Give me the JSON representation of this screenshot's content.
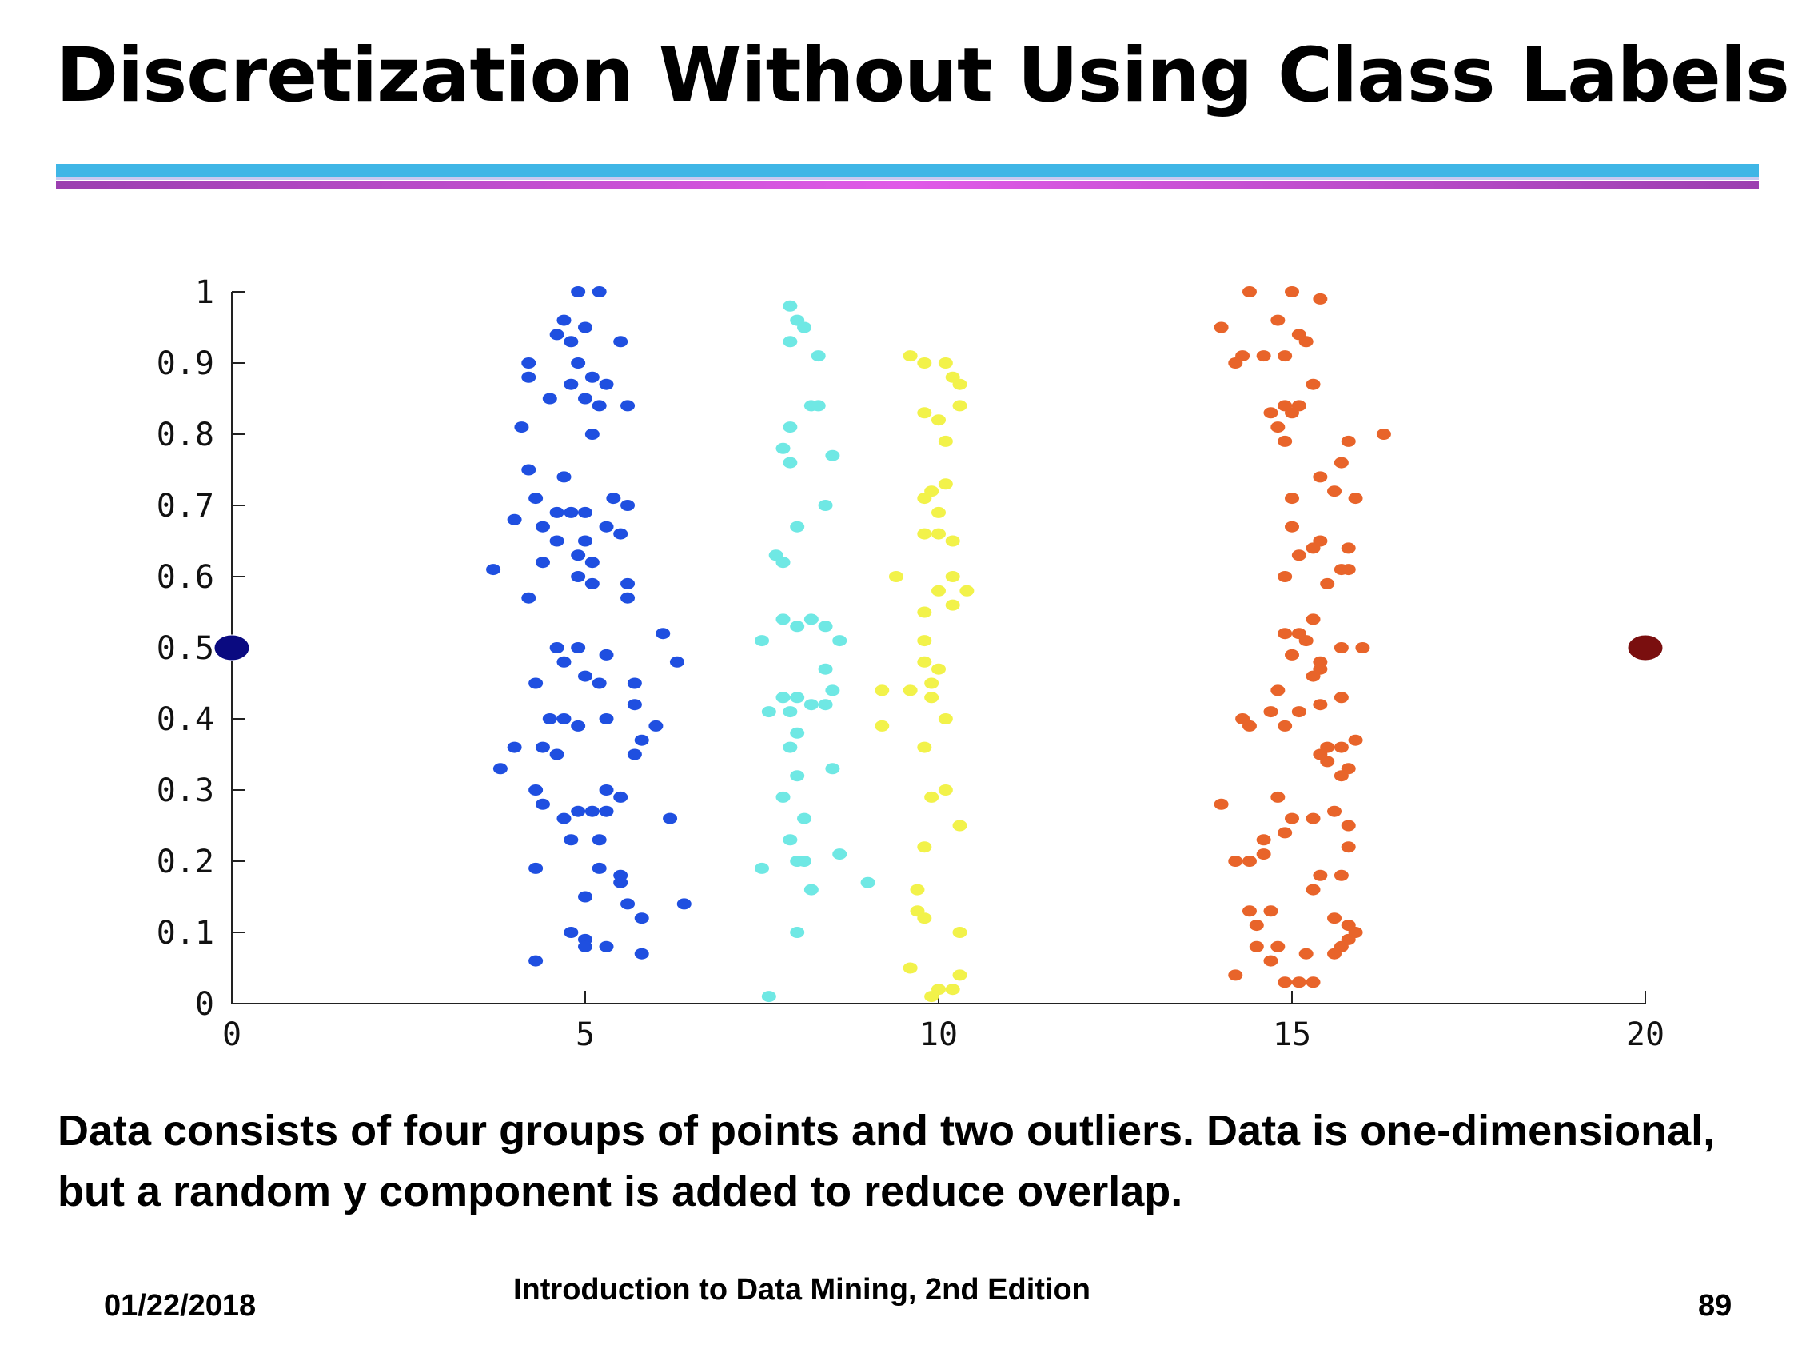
{
  "title": "Discretization Without Using Class Labels",
  "caption": "Data consists of four groups of points and two outliers. Data is one-dimensional, but a random y component is added to reduce overlap.",
  "footer": {
    "date": "01/22/2018",
    "book": "Introduction to Data Mining, 2nd Edition",
    "page": "89"
  },
  "colors": {
    "rule_top": "#3fb6e6",
    "rule_bottom": "#d24fe0",
    "group_1": "#1f4fe0",
    "group_2": "#6fe8e4",
    "group_3": "#f2f24a",
    "group_4": "#e8642a",
    "outlier_left": "#0a0a80",
    "outlier_right": "#7a0f0f"
  },
  "chart_data": {
    "type": "scatter",
    "title": "",
    "xlabel": "",
    "ylabel": "",
    "xlim": [
      0,
      20
    ],
    "ylim": [
      0,
      1
    ],
    "x_ticks": [
      "0",
      "5",
      "10",
      "15",
      "20"
    ],
    "y_ticks": [
      "0",
      "0.1",
      "0.2",
      "0.3",
      "0.4",
      "0.5",
      "0.6",
      "0.7",
      "0.8",
      "0.9",
      "1"
    ],
    "grid": false,
    "legend": "none",
    "series": [
      {
        "color": "#1f4fe0",
        "points": [
          [
            4.9,
            1.0
          ],
          [
            5.2,
            1.0
          ],
          [
            4.7,
            0.96
          ],
          [
            5.0,
            0.95
          ],
          [
            4.6,
            0.94
          ],
          [
            4.8,
            0.93
          ],
          [
            5.5,
            0.93
          ],
          [
            4.2,
            0.9
          ],
          [
            4.2,
            0.88
          ],
          [
            4.9,
            0.9
          ],
          [
            5.1,
            0.88
          ],
          [
            4.8,
            0.87
          ],
          [
            5.3,
            0.87
          ],
          [
            4.5,
            0.85
          ],
          [
            5.0,
            0.85
          ],
          [
            5.2,
            0.84
          ],
          [
            5.6,
            0.84
          ],
          [
            4.1,
            0.81
          ],
          [
            5.1,
            0.8
          ],
          [
            4.2,
            0.75
          ],
          [
            4.7,
            0.74
          ],
          [
            4.3,
            0.71
          ],
          [
            5.4,
            0.71
          ],
          [
            5.6,
            0.7
          ],
          [
            4.0,
            0.68
          ],
          [
            4.6,
            0.69
          ],
          [
            4.8,
            0.69
          ],
          [
            5.0,
            0.69
          ],
          [
            4.4,
            0.67
          ],
          [
            5.3,
            0.67
          ],
          [
            5.5,
            0.66
          ],
          [
            4.6,
            0.65
          ],
          [
            5.0,
            0.65
          ],
          [
            4.4,
            0.62
          ],
          [
            4.9,
            0.63
          ],
          [
            5.1,
            0.62
          ],
          [
            3.7,
            0.61
          ],
          [
            4.9,
            0.6
          ],
          [
            5.1,
            0.59
          ],
          [
            5.6,
            0.59
          ],
          [
            4.2,
            0.57
          ],
          [
            5.6,
            0.57
          ],
          [
            6.1,
            0.52
          ],
          [
            4.6,
            0.5
          ],
          [
            4.9,
            0.5
          ],
          [
            5.3,
            0.49
          ],
          [
            4.7,
            0.48
          ],
          [
            6.3,
            0.48
          ],
          [
            5.0,
            0.46
          ],
          [
            4.3,
            0.45
          ],
          [
            5.7,
            0.45
          ],
          [
            5.2,
            0.45
          ],
          [
            5.7,
            0.42
          ],
          [
            4.5,
            0.4
          ],
          [
            4.7,
            0.4
          ],
          [
            4.9,
            0.39
          ],
          [
            5.3,
            0.4
          ],
          [
            6.0,
            0.39
          ],
          [
            4.0,
            0.36
          ],
          [
            4.4,
            0.36
          ],
          [
            4.6,
            0.35
          ],
          [
            5.8,
            0.37
          ],
          [
            5.7,
            0.35
          ],
          [
            3.8,
            0.33
          ],
          [
            4.3,
            0.3
          ],
          [
            5.3,
            0.3
          ],
          [
            5.5,
            0.29
          ],
          [
            4.4,
            0.28
          ],
          [
            4.9,
            0.27
          ],
          [
            5.1,
            0.27
          ],
          [
            4.7,
            0.26
          ],
          [
            5.3,
            0.27
          ],
          [
            6.2,
            0.26
          ],
          [
            4.8,
            0.23
          ],
          [
            5.2,
            0.23
          ],
          [
            4.3,
            0.19
          ],
          [
            5.2,
            0.19
          ],
          [
            5.5,
            0.18
          ],
          [
            5.5,
            0.17
          ],
          [
            5.0,
            0.15
          ],
          [
            5.6,
            0.14
          ],
          [
            6.4,
            0.14
          ],
          [
            5.8,
            0.12
          ],
          [
            4.8,
            0.1
          ],
          [
            5.0,
            0.09
          ],
          [
            5.3,
            0.08
          ],
          [
            5.0,
            0.08
          ],
          [
            5.8,
            0.07
          ],
          [
            4.3,
            0.06
          ]
        ]
      },
      {
        "color": "#6fe8e4",
        "points": [
          [
            7.9,
            0.98
          ],
          [
            8.0,
            0.96
          ],
          [
            8.1,
            0.95
          ],
          [
            7.9,
            0.93
          ],
          [
            8.3,
            0.91
          ],
          [
            8.2,
            0.84
          ],
          [
            8.3,
            0.84
          ],
          [
            7.9,
            0.81
          ],
          [
            7.8,
            0.78
          ],
          [
            7.9,
            0.76
          ],
          [
            8.5,
            0.77
          ],
          [
            8.4,
            0.7
          ],
          [
            8.0,
            0.67
          ],
          [
            7.7,
            0.63
          ],
          [
            7.8,
            0.62
          ],
          [
            7.8,
            0.54
          ],
          [
            8.0,
            0.53
          ],
          [
            8.2,
            0.54
          ],
          [
            8.4,
            0.53
          ],
          [
            8.6,
            0.51
          ],
          [
            7.5,
            0.51
          ],
          [
            8.4,
            0.47
          ],
          [
            8.5,
            0.44
          ],
          [
            7.8,
            0.43
          ],
          [
            8.0,
            0.43
          ],
          [
            8.2,
            0.42
          ],
          [
            8.4,
            0.42
          ],
          [
            7.6,
            0.41
          ],
          [
            7.9,
            0.41
          ],
          [
            8.0,
            0.38
          ],
          [
            7.9,
            0.36
          ],
          [
            8.5,
            0.33
          ],
          [
            8.0,
            0.32
          ],
          [
            7.8,
            0.29
          ],
          [
            8.1,
            0.26
          ],
          [
            7.9,
            0.23
          ],
          [
            7.5,
            0.19
          ],
          [
            8.0,
            0.2
          ],
          [
            8.1,
            0.2
          ],
          [
            8.6,
            0.21
          ],
          [
            9.0,
            0.17
          ],
          [
            8.2,
            0.16
          ],
          [
            8.0,
            0.1
          ],
          [
            7.6,
            0.01
          ]
        ]
      },
      {
        "color": "#f2f24a",
        "points": [
          [
            9.6,
            0.91
          ],
          [
            9.8,
            0.9
          ],
          [
            10.1,
            0.9
          ],
          [
            10.2,
            0.88
          ],
          [
            10.3,
            0.87
          ],
          [
            10.3,
            0.84
          ],
          [
            9.8,
            0.83
          ],
          [
            10.0,
            0.82
          ],
          [
            10.1,
            0.79
          ],
          [
            10.1,
            0.73
          ],
          [
            9.9,
            0.72
          ],
          [
            9.8,
            0.71
          ],
          [
            10.0,
            0.69
          ],
          [
            9.8,
            0.66
          ],
          [
            10.0,
            0.66
          ],
          [
            10.2,
            0.65
          ],
          [
            9.4,
            0.6
          ],
          [
            10.2,
            0.6
          ],
          [
            10.0,
            0.58
          ],
          [
            10.4,
            0.58
          ],
          [
            10.2,
            0.56
          ],
          [
            9.8,
            0.55
          ],
          [
            9.8,
            0.51
          ],
          [
            9.8,
            0.48
          ],
          [
            10.0,
            0.47
          ],
          [
            9.6,
            0.44
          ],
          [
            9.9,
            0.45
          ],
          [
            9.9,
            0.43
          ],
          [
            9.2,
            0.44
          ],
          [
            10.1,
            0.4
          ],
          [
            9.2,
            0.39
          ],
          [
            9.8,
            0.36
          ],
          [
            10.1,
            0.3
          ],
          [
            9.9,
            0.29
          ],
          [
            10.3,
            0.25
          ],
          [
            9.8,
            0.22
          ],
          [
            9.7,
            0.16
          ],
          [
            9.7,
            0.13
          ],
          [
            9.8,
            0.12
          ],
          [
            10.3,
            0.1
          ],
          [
            9.6,
            0.05
          ],
          [
            10.3,
            0.04
          ],
          [
            10.0,
            0.02
          ],
          [
            9.9,
            0.01
          ],
          [
            10.2,
            0.02
          ]
        ]
      },
      {
        "color": "#e8642a",
        "points": [
          [
            14.4,
            1.0
          ],
          [
            15.0,
            1.0
          ],
          [
            15.4,
            0.99
          ],
          [
            14.8,
            0.96
          ],
          [
            15.1,
            0.94
          ],
          [
            15.2,
            0.93
          ],
          [
            14.0,
            0.95
          ],
          [
            14.3,
            0.91
          ],
          [
            14.6,
            0.91
          ],
          [
            14.9,
            0.91
          ],
          [
            14.2,
            0.9
          ],
          [
            15.3,
            0.87
          ],
          [
            14.9,
            0.84
          ],
          [
            15.0,
            0.83
          ],
          [
            14.7,
            0.83
          ],
          [
            15.1,
            0.84
          ],
          [
            14.8,
            0.81
          ],
          [
            14.9,
            0.79
          ],
          [
            15.8,
            0.79
          ],
          [
            16.3,
            0.8
          ],
          [
            15.7,
            0.76
          ],
          [
            15.4,
            0.74
          ],
          [
            15.6,
            0.72
          ],
          [
            15.9,
            0.71
          ],
          [
            15.0,
            0.71
          ],
          [
            15.0,
            0.67
          ],
          [
            15.4,
            0.65
          ],
          [
            15.3,
            0.64
          ],
          [
            15.8,
            0.64
          ],
          [
            15.1,
            0.63
          ],
          [
            14.9,
            0.6
          ],
          [
            15.7,
            0.61
          ],
          [
            15.8,
            0.61
          ],
          [
            15.5,
            0.59
          ],
          [
            15.3,
            0.54
          ],
          [
            14.9,
            0.52
          ],
          [
            15.1,
            0.52
          ],
          [
            15.2,
            0.51
          ],
          [
            15.7,
            0.5
          ],
          [
            16.0,
            0.5
          ],
          [
            15.0,
            0.49
          ],
          [
            15.4,
            0.48
          ],
          [
            15.3,
            0.46
          ],
          [
            15.4,
            0.47
          ],
          [
            14.8,
            0.44
          ],
          [
            15.7,
            0.43
          ],
          [
            15.4,
            0.42
          ],
          [
            14.7,
            0.41
          ],
          [
            15.1,
            0.41
          ],
          [
            14.3,
            0.4
          ],
          [
            14.4,
            0.39
          ],
          [
            14.9,
            0.39
          ],
          [
            15.9,
            0.37
          ],
          [
            15.7,
            0.36
          ],
          [
            15.5,
            0.36
          ],
          [
            15.4,
            0.35
          ],
          [
            15.5,
            0.34
          ],
          [
            15.8,
            0.33
          ],
          [
            15.7,
            0.32
          ],
          [
            14.8,
            0.29
          ],
          [
            14.0,
            0.28
          ],
          [
            15.0,
            0.26
          ],
          [
            15.3,
            0.26
          ],
          [
            15.6,
            0.27
          ],
          [
            15.8,
            0.25
          ],
          [
            14.9,
            0.24
          ],
          [
            14.6,
            0.23
          ],
          [
            15.8,
            0.22
          ],
          [
            14.6,
            0.21
          ],
          [
            14.2,
            0.2
          ],
          [
            14.4,
            0.2
          ],
          [
            15.4,
            0.18
          ],
          [
            15.7,
            0.18
          ],
          [
            15.3,
            0.16
          ],
          [
            14.4,
            0.13
          ],
          [
            14.7,
            0.13
          ],
          [
            14.5,
            0.11
          ],
          [
            15.6,
            0.12
          ],
          [
            15.8,
            0.11
          ],
          [
            15.9,
            0.1
          ],
          [
            15.8,
            0.09
          ],
          [
            14.5,
            0.08
          ],
          [
            14.8,
            0.08
          ],
          [
            15.7,
            0.08
          ],
          [
            15.6,
            0.07
          ],
          [
            15.2,
            0.07
          ],
          [
            14.7,
            0.06
          ],
          [
            14.2,
            0.04
          ],
          [
            14.9,
            0.03
          ],
          [
            15.1,
            0.03
          ],
          [
            15.3,
            0.03
          ]
        ]
      },
      {
        "color": "#0a0a80",
        "points": [
          [
            0,
            0.5
          ]
        ]
      },
      {
        "color": "#7a0f0f",
        "points": [
          [
            20,
            0.5
          ]
        ]
      }
    ]
  }
}
